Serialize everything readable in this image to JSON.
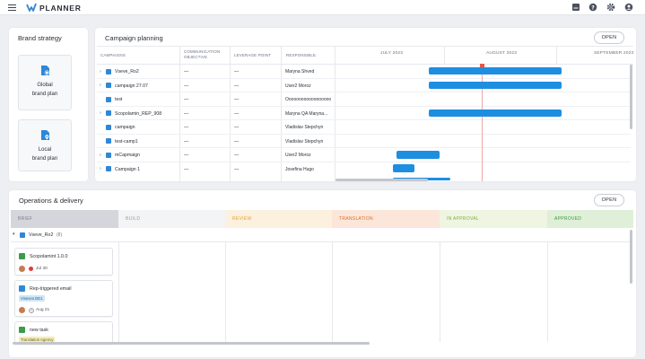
{
  "app": {
    "title": "PLANNER"
  },
  "brand_strategy": {
    "title": "Brand strategy",
    "cards": [
      {
        "line1": "Global",
        "line2": "brand plan"
      },
      {
        "line1": "Local",
        "line2": "brand plan"
      }
    ]
  },
  "campaign_planning": {
    "title": "Campaign planning",
    "open_label": "OPEN",
    "columns": {
      "campaigns": "CAMPAIGNS",
      "objective_1": "COMMUNICATION",
      "objective_2": "OBJECTIVE",
      "leverage": "LEVERAGE POINT",
      "responsible": "RESPONSIBLE"
    },
    "months": [
      "JULY 2023",
      "AUGUST 2023",
      "SEPTEMBER 2023"
    ],
    "rows": [
      {
        "name": "Vseve_Ro2",
        "objective": "—",
        "leverage": "—",
        "responsible": "Maryna Shved"
      },
      {
        "name": "campaign 27.07",
        "objective": "—",
        "leverage": "—",
        "responsible": "User2 Moroz"
      },
      {
        "name": "test",
        "objective": "—",
        "leverage": "—",
        "responsible": "Oooooooooooooooooo"
      },
      {
        "name": "Scopolamin_REP_908",
        "objective": "—",
        "leverage": "—",
        "responsible": "Maryna QA Maryna..."
      },
      {
        "name": "campaign",
        "objective": "—",
        "leverage": "—",
        "responsible": "Vladislav Stepchyn"
      },
      {
        "name": "test-camp1",
        "objective": "—",
        "leverage": "—",
        "responsible": "Vladislav Stepchyn"
      },
      {
        "name": "mCapmaign",
        "objective": "—",
        "leverage": "—",
        "responsible": "User2 Moroz"
      },
      {
        "name": "Campaign 1",
        "objective": "—",
        "leverage": "—",
        "responsible": "Josefina Hugo"
      }
    ]
  },
  "operations": {
    "title": "Operations & delivery",
    "open_label": "OPEN",
    "stages": [
      "BRIEF",
      "BUILD",
      "REVIEW",
      "TRANSLATION",
      "IN APPROVAL",
      "APPROVED"
    ],
    "stage_colors": {
      "brief": {
        "bg": "#d4d6db",
        "fg": "#7a7f8a"
      },
      "build": {
        "bg": "#f3f4f6",
        "fg": "#9a9fa8"
      },
      "review": {
        "bg": "#fcf1de",
        "fg": "#e3a23e"
      },
      "translation": {
        "bg": "#fbe6d9",
        "fg": "#de6e2a"
      },
      "in_approval": {
        "bg": "#eef5e1",
        "fg": "#7fae45"
      },
      "approved": {
        "bg": "#dfefd8",
        "fg": "#3f9a3f"
      }
    },
    "group": {
      "name": "Vseve_Ro2",
      "count": "(8)"
    },
    "tasks": [
      {
        "title": "Scopolamint 1.0.0",
        "date": "Jul 30",
        "icon": "email-icon"
      },
      {
        "title": "Rep-triggered email",
        "tag": "Viseves DE1",
        "date": "Aug 21",
        "icon": "email-icon"
      },
      {
        "title": "new task",
        "tag": "Translation Agency",
        "icon": "check-task-icon"
      }
    ]
  },
  "colors": {
    "accent": "#1e8ee0",
    "today": "#e8574a"
  }
}
